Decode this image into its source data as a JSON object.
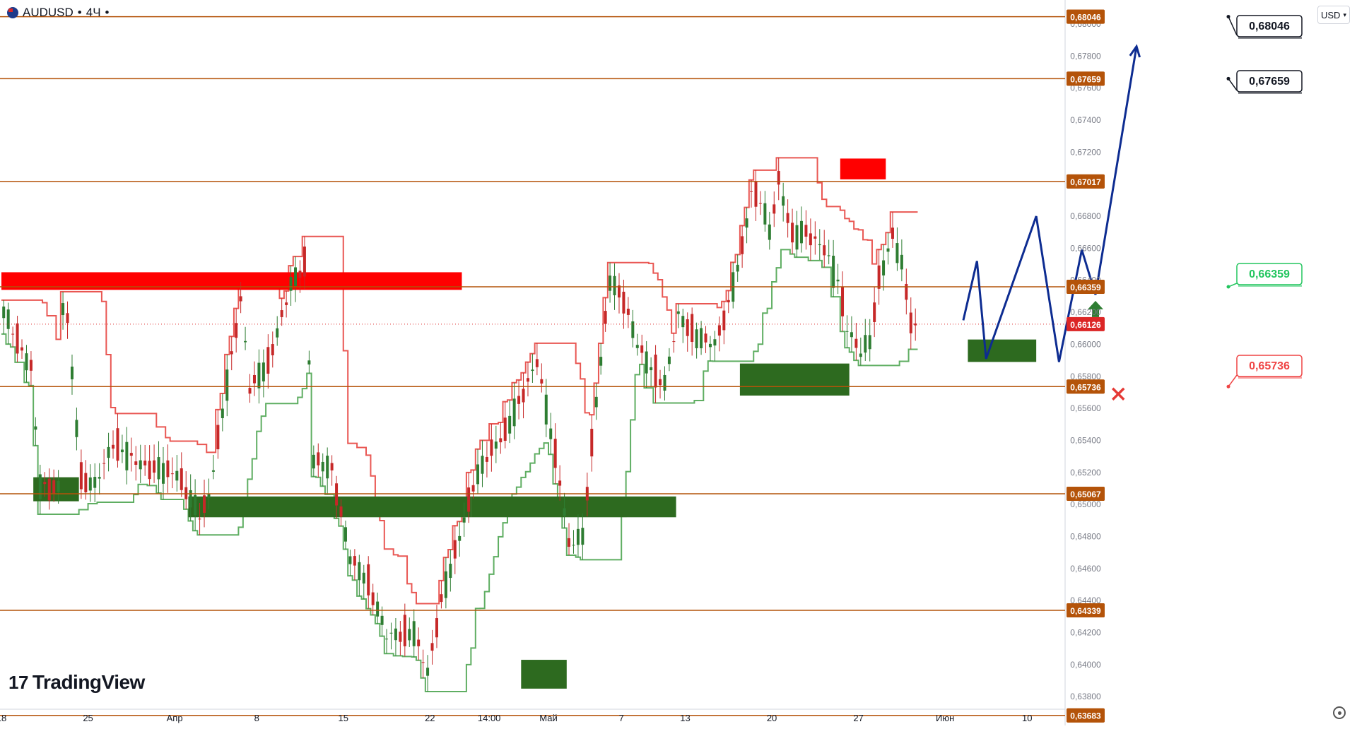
{
  "header": {
    "symbol": "AUDUSD",
    "separator": "•",
    "timeframe": "4Ч",
    "menu_dot": "•",
    "flag_icon": "australia-flag-icon"
  },
  "currency_selector": {
    "label": "USD",
    "icon": "chevron-down-icon"
  },
  "logo": {
    "mark": "17",
    "text": "TradingView"
  },
  "settings_icon": "gear-icon",
  "colors": {
    "level_line": "#b45309",
    "level_label_bg": "#b45309",
    "current_price_bg": "#dc2626",
    "resistance_zone": "#ff0000",
    "support_zone": "#2d6a1f",
    "projection": "#0d2c91",
    "bull_candle": "#2e7d32",
    "bear_candle": "#c62828",
    "stop_trail": "#e53935",
    "up_trail": "#43a047",
    "target_box_border": "#131722",
    "tp_box_border": "#22c55e",
    "sl_box_border": "#ef4444"
  },
  "chart_data": {
    "type": "candlestick",
    "symbol": "AUDUSD",
    "timeframe": "4Ч",
    "ylim": [
      0.6362,
      0.6815
    ],
    "y_ticks": [
      "0,68000",
      "0,67800",
      "0,67600",
      "0,67400",
      "0,67200",
      "0,67000",
      "0,66800",
      "0,66600",
      "0,66400",
      "0,66200",
      "0,66000",
      "0,65800",
      "0,65600",
      "0,65400",
      "0,65200",
      "0,65000",
      "0,64800",
      "0,64600",
      "0,64400",
      "0,64200",
      "0,64000",
      "0,63800"
    ],
    "y_tick_values": [
      0.68,
      0.678,
      0.676,
      0.674,
      0.672,
      0.67,
      0.668,
      0.666,
      0.664,
      0.662,
      0.66,
      0.658,
      0.656,
      0.654,
      0.652,
      0.65,
      0.648,
      0.646,
      0.644,
      0.642,
      0.64,
      0.638
    ],
    "x_ticks": [
      "18",
      "25",
      "Апр",
      "8",
      "15",
      "22",
      "14:00",
      "Май",
      "7",
      "13",
      "20",
      "27",
      "Июн",
      "10"
    ],
    "levels": [
      {
        "value": 0.68046,
        "label": "0,68046"
      },
      {
        "value": 0.67659,
        "label": "0,67659"
      },
      {
        "value": 0.67017,
        "label": "0,67017"
      },
      {
        "value": 0.66359,
        "label": "0,66359"
      },
      {
        "value": 0.65736,
        "label": "0,65736"
      },
      {
        "value": 0.65067,
        "label": "0,65067"
      },
      {
        "value": 0.64339,
        "label": "0,64339"
      },
      {
        "value": 0.63683,
        "label": "0,63683"
      }
    ],
    "current_price": {
      "value": 0.66126,
      "label": "0,66126"
    },
    "target_labels": [
      {
        "label": "0,68046",
        "kind": "target"
      },
      {
        "label": "0,67659",
        "kind": "target"
      },
      {
        "label": "0,66359",
        "kind": "entry"
      },
      {
        "label": "0,65736",
        "kind": "stop"
      }
    ],
    "resistance_zones": [
      {
        "x_start": 0,
        "x_end": 101,
        "y_top": 0.6645,
        "y_bottom": 0.6634
      },
      {
        "x_start": 184,
        "x_end": 194,
        "y_top": 0.6716,
        "y_bottom": 0.6703
      }
    ],
    "support_zones": [
      {
        "x_start": 7,
        "x_end": 17,
        "y_top": 0.6517,
        "y_bottom": 0.6502
      },
      {
        "x_start": 41,
        "x_end": 103,
        "y_top": 0.6505,
        "y_bottom": 0.6492
      },
      {
        "x_start": 103,
        "x_end": 148,
        "y_top": 0.6505,
        "y_bottom": 0.6492
      },
      {
        "x_start": 114,
        "x_end": 124,
        "y_top": 0.6403,
        "y_bottom": 0.6385
      },
      {
        "x_start": 162,
        "x_end": 186,
        "y_top": 0.6588,
        "y_bottom": 0.6568
      },
      {
        "x_start": 212,
        "x_end": 227,
        "y_top": 0.6603,
        "y_bottom": 0.6589
      }
    ],
    "projection_path": [
      [
        211,
        0.6615
      ],
      [
        214,
        0.6652
      ],
      [
        216,
        0.6591
      ],
      [
        227,
        0.668
      ],
      [
        232,
        0.6589
      ],
      [
        237,
        0.6659
      ],
      [
        240,
        0.6631
      ],
      [
        249,
        0.6786
      ]
    ],
    "projection_arrows": [
      {
        "x": 240,
        "y": 0.6621,
        "direction": "up"
      }
    ],
    "stop_marker": {
      "x": 245,
      "y": 0.6569
    }
  }
}
